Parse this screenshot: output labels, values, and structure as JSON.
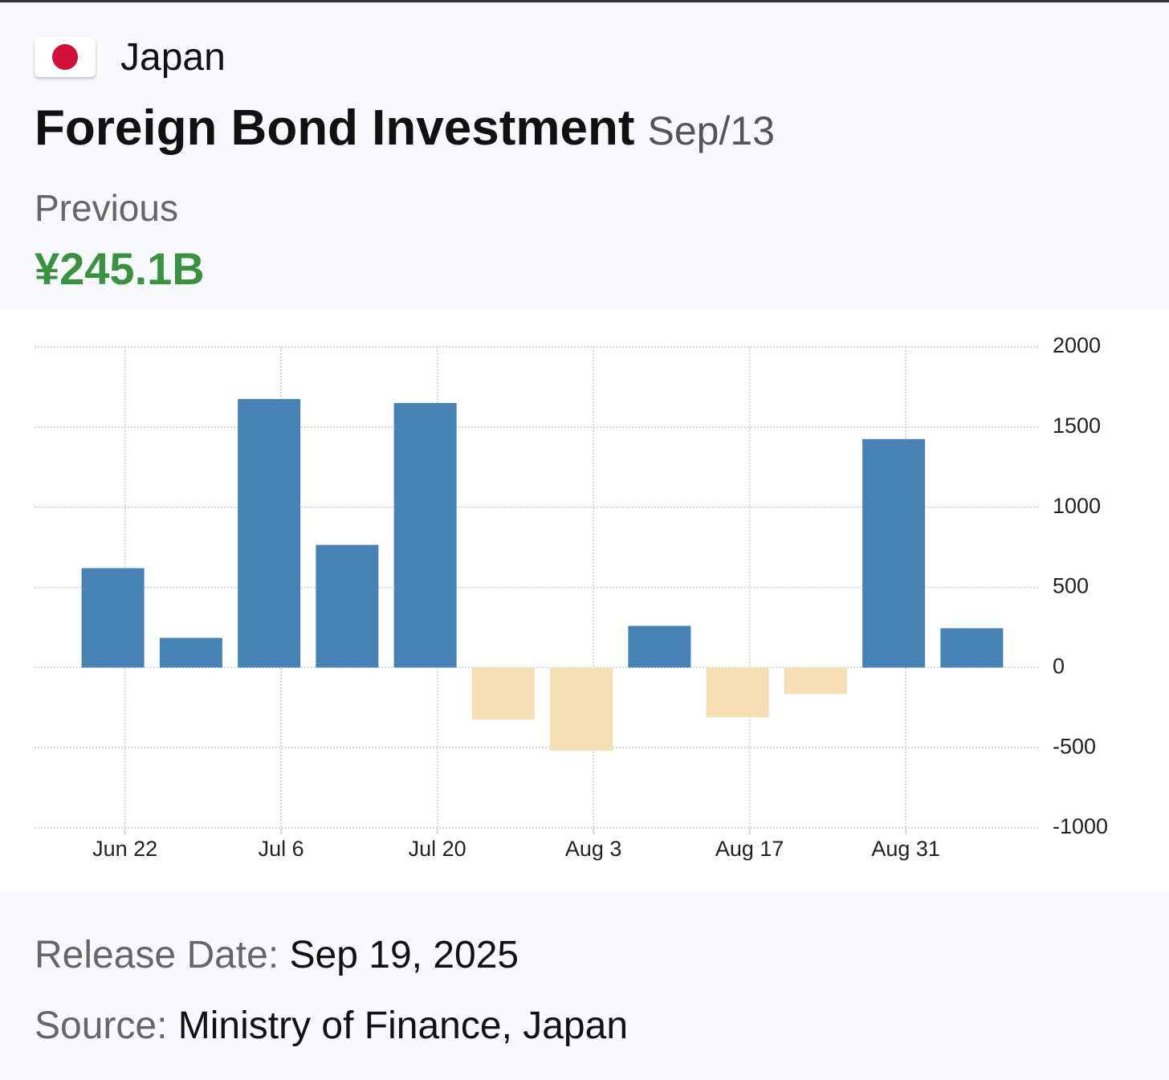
{
  "header": {
    "country": "Japan",
    "title": "Foreign Bond Investment",
    "period": "Sep/13"
  },
  "previous": {
    "label": "Previous",
    "value": "¥245.1B"
  },
  "chart_data": {
    "type": "bar",
    "categories": [
      "Jun 22",
      null,
      "Jul 6",
      null,
      "Jul 20",
      null,
      "Aug 3",
      null,
      "Aug 17",
      null,
      "Aug 31",
      null
    ],
    "values": [
      620,
      185,
      1675,
      765,
      1650,
      -325,
      -520,
      260,
      -310,
      -165,
      1425,
      245.1
    ],
    "color": "#4682b4",
    "negative_color": "#f5deb3",
    "ylim": [
      -1000,
      2000
    ],
    "yticks": [
      2000,
      1500,
      1000,
      500,
      0,
      -500,
      -1000
    ],
    "grid": true
  },
  "footer": {
    "release_label": "Release Date:",
    "release_date": "Sep 19, 2025",
    "source_label": "Source:",
    "source": "Ministry of Finance, Japan"
  }
}
